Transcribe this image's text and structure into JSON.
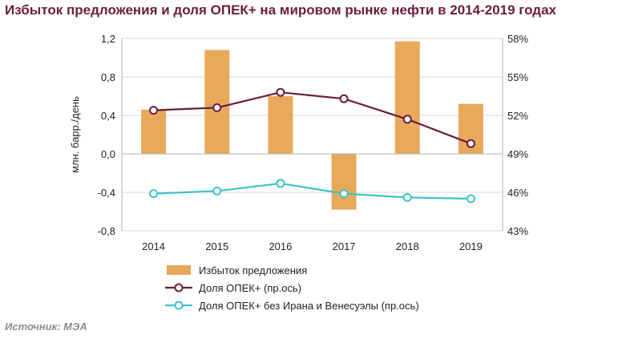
{
  "title": "Избыток предложения и доля ОПЕК+ на мировом рынке нефти в 2014-2019 годах",
  "source": "Источник: МЭА",
  "chart_data": {
    "type": "bar",
    "categories": [
      "2014",
      "2015",
      "2016",
      "2017",
      "2018",
      "2019"
    ],
    "ylabel": "млн. барр./день",
    "ylim": [
      -0.8,
      1.2
    ],
    "yticks": [
      "1,2",
      "0,8",
      "0,4",
      "0,0",
      "-0,4",
      "-0,8"
    ],
    "ylim_right": [
      43,
      58
    ],
    "yticks_right": [
      "58%",
      "55%",
      "52%",
      "49%",
      "46%",
      "43%"
    ],
    "grid": true,
    "legend_position": "bottom",
    "series": [
      {
        "name": "Избыток предложения",
        "type": "bar",
        "axis": "left",
        "color": "#e8a95b",
        "values": [
          0.46,
          1.08,
          0.6,
          -0.58,
          1.17,
          0.52
        ]
      },
      {
        "name": "Доля ОПЕК+ (пр.ось)",
        "type": "line",
        "axis": "right",
        "color": "#6b1d3c",
        "values": [
          52.4,
          52.6,
          53.8,
          53.3,
          51.7,
          49.8
        ]
      },
      {
        "name": "Доля ОПЕК+ без Ирана и Венесуэлы (пр.ось)",
        "type": "line",
        "axis": "right",
        "color": "#3cc4c8",
        "values": [
          45.9,
          46.1,
          46.7,
          45.9,
          45.6,
          45.5
        ]
      }
    ]
  }
}
